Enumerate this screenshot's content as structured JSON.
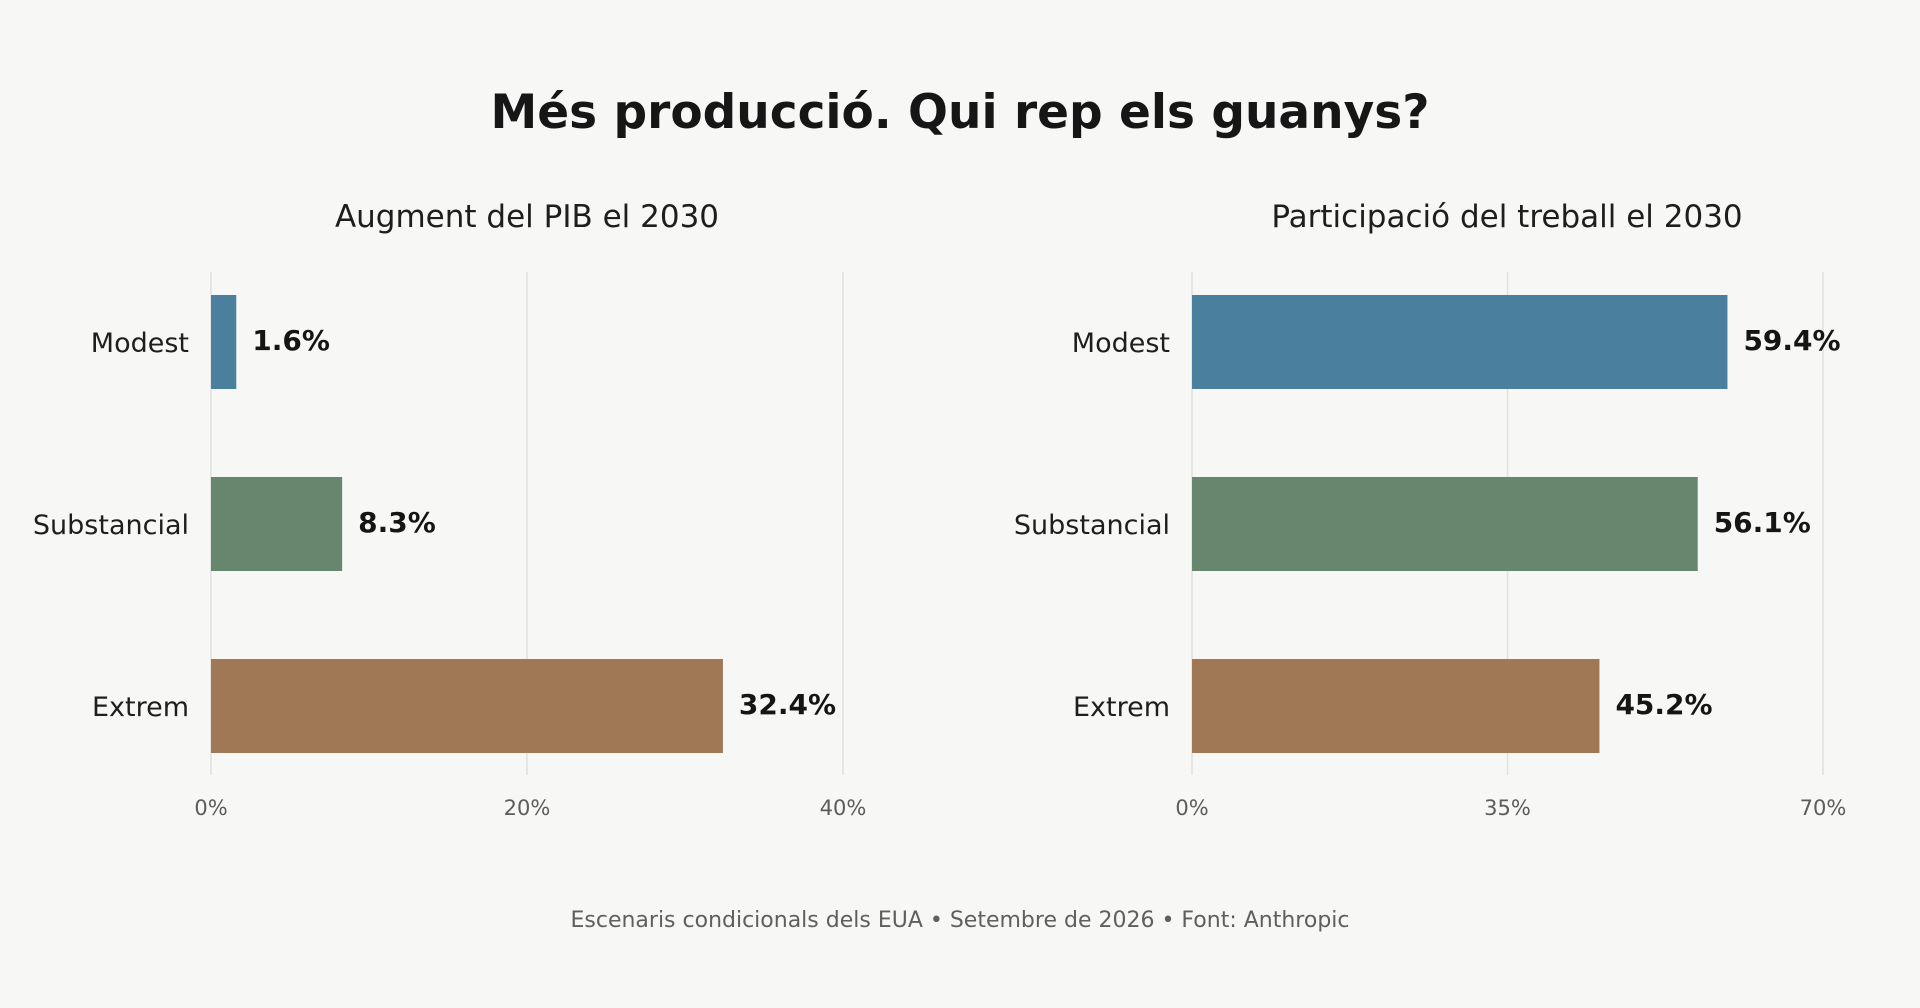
{
  "title": "Més producció. Qui rep els guanys?",
  "footnote": "Escenaris condicionals dels EUA • Setembre de 2026 • Font: Anthropic",
  "chart_data": [
    {
      "type": "bar",
      "orientation": "horizontal",
      "title": "Augment del PIB el 2030",
      "categories": [
        "Modest",
        "Substancial",
        "Extrem"
      ],
      "values": [
        1.6,
        8.3,
        32.4
      ],
      "value_labels": [
        "1.6%",
        "8.3%",
        "32.4%"
      ],
      "colors": [
        "#4a7f9e",
        "#66866e",
        "#a07856"
      ],
      "xlim": [
        0,
        40
      ],
      "xticks": [
        0,
        20,
        40
      ],
      "xtick_labels": [
        "0%",
        "20%",
        "40%"
      ],
      "grid": true
    },
    {
      "type": "bar",
      "orientation": "horizontal",
      "title": "Participació del treball el 2030",
      "categories": [
        "Modest",
        "Substancial",
        "Extrem"
      ],
      "values": [
        59.4,
        56.1,
        45.2
      ],
      "value_labels": [
        "59.4%",
        "56.1%",
        "45.2%"
      ],
      "colors": [
        "#4a7f9e",
        "#66866e",
        "#a07856"
      ],
      "xlim": [
        0,
        70
      ],
      "xticks": [
        0,
        35,
        70
      ],
      "xtick_labels": [
        "0%",
        "35%",
        "70%"
      ],
      "grid": true
    }
  ]
}
